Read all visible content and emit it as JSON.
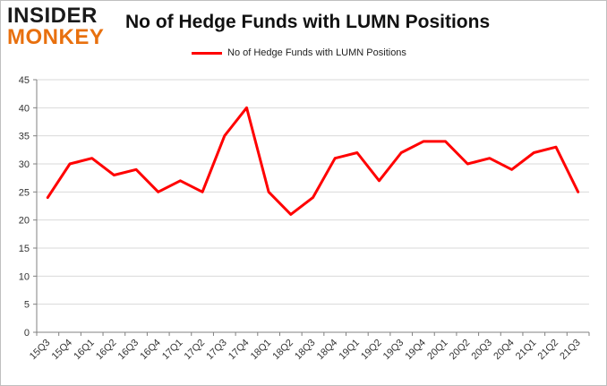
{
  "logo": {
    "line1": "INSIDER",
    "line2": "MONKEY"
  },
  "colors": {
    "series": "#ff0000",
    "grid": "#d9d9d9",
    "axis": "#808080"
  },
  "chart_data": {
    "type": "line",
    "title": "No of Hedge Funds with LUMN Positions",
    "xlabel": "",
    "ylabel": "",
    "ylim": [
      0,
      45
    ],
    "yticks": [
      0,
      5,
      10,
      15,
      20,
      25,
      30,
      35,
      40,
      45
    ],
    "grid": true,
    "legend": "top-center",
    "categories": [
      "15Q3",
      "15Q4",
      "16Q1",
      "16Q2",
      "16Q3",
      "16Q4",
      "17Q1",
      "17Q2",
      "17Q3",
      "17Q4",
      "18Q1",
      "18Q2",
      "18Q3",
      "18Q4",
      "19Q1",
      "19Q2",
      "19Q3",
      "19Q4",
      "20Q1",
      "20Q2",
      "20Q3",
      "20Q4",
      "21Q1",
      "21Q2",
      "21Q3"
    ],
    "series": [
      {
        "name": "No of Hedge Funds with LUMN Positions",
        "values": [
          24,
          30,
          31,
          28,
          29,
          25,
          27,
          25,
          35,
          40,
          25,
          21,
          24,
          31,
          32,
          27,
          32,
          34,
          34,
          30,
          31,
          29,
          32,
          33,
          25
        ]
      }
    ]
  }
}
